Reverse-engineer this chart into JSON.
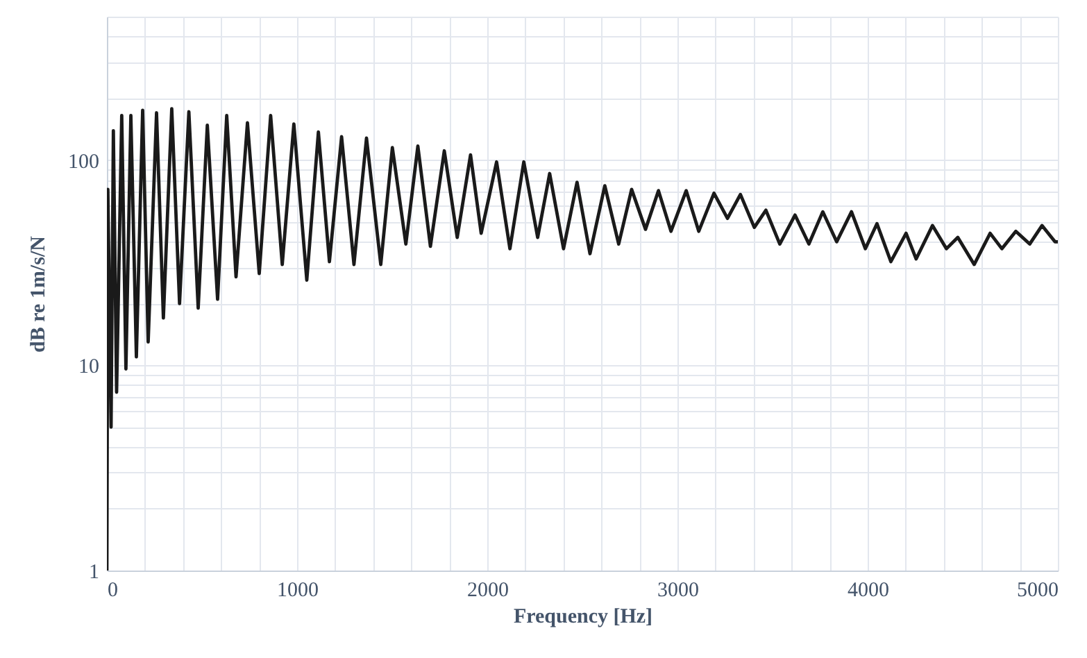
{
  "chart_data": {
    "type": "line",
    "xlabel": "Frequency [Hz]",
    "ylabel": "dB re 1m/s/N",
    "log": "y",
    "grid": true,
    "marker": "none",
    "line_style": "solid",
    "xlim": [
      0,
      5000
    ],
    "ylim": [
      1,
      500
    ],
    "xticks": [
      0,
      {
        "value": 200,
        "label": null
      },
      {
        "value": 400,
        "label": null
      },
      {
        "value": 600,
        "label": null
      },
      {
        "value": 800,
        "label": null
      },
      1000,
      {
        "value": 1200,
        "label": null
      },
      {
        "value": 1400,
        "label": null
      },
      {
        "value": 1600,
        "label": null
      },
      {
        "value": 1800,
        "label": null
      },
      2000,
      {
        "value": 2200,
        "label": null
      },
      {
        "value": 2400,
        "label": null
      },
      {
        "value": 2600,
        "label": null
      },
      {
        "value": 2800,
        "label": null
      },
      3000,
      {
        "value": 3200,
        "label": null
      },
      {
        "value": 3400,
        "label": null
      },
      {
        "value": 3600,
        "label": null
      },
      {
        "value": 3800,
        "label": null
      },
      4000,
      {
        "value": 4200,
        "label": null
      },
      {
        "value": 4400,
        "label": null
      },
      {
        "value": 4600,
        "label": null
      },
      {
        "value": 4800,
        "label": null
      },
      5000
    ],
    "yticks": [
      1,
      {
        "value": 2,
        "label": null
      },
      {
        "value": 3,
        "label": null
      },
      {
        "value": 4,
        "label": null
      },
      {
        "value": 5,
        "label": null
      },
      {
        "value": 6,
        "label": null
      },
      {
        "value": 7,
        "label": null
      },
      {
        "value": 8,
        "label": null
      },
      {
        "value": 9,
        "label": null
      },
      10,
      {
        "value": 20,
        "label": null
      },
      {
        "value": 30,
        "label": null
      },
      {
        "value": 40,
        "label": null
      },
      {
        "value": 50,
        "label": null
      },
      {
        "value": 60,
        "label": null
      },
      {
        "value": 70,
        "label": null
      },
      {
        "value": 80,
        "label": null
      },
      {
        "value": 90,
        "label": null
      },
      100,
      {
        "value": 200,
        "label": null
      },
      {
        "value": 300,
        "label": null
      },
      {
        "value": 400,
        "label": null
      },
      {
        "value": 500,
        "label": null
      }
    ],
    "x": [
      0,
      5,
      22,
      34,
      51,
      78,
      100,
      126,
      155,
      188,
      217,
      261,
      297,
      341,
      382,
      431,
      480,
      528,
      582,
      630,
      679,
      739,
      801,
      861,
      922,
      983,
      1051,
      1112,
      1170,
      1234,
      1299,
      1365,
      1440,
      1501,
      1572,
      1635,
      1701,
      1774,
      1842,
      1912,
      1968,
      2049,
      2119,
      2192,
      2265,
      2328,
      2401,
      2472,
      2540,
      2618,
      2691,
      2759,
      2832,
      2900,
      2966,
      3046,
      3112,
      3192,
      3263,
      3331,
      3404,
      3465,
      3538,
      3618,
      3691,
      3764,
      3837,
      3915,
      3988,
      4049,
      4122,
      4202,
      4255,
      4341,
      4414,
      4474,
      4560,
      4644,
      4706,
      4779,
      4852,
      4917,
      4985,
      5000
    ],
    "series": [
      {
        "color": "#1a1a1a",
        "values": [
          1,
          72,
          5,
          139,
          7.4,
          165,
          9.6,
          165,
          11,
          175,
          13,
          170,
          17,
          178,
          20,
          172,
          19,
          148,
          21,
          165,
          27,
          152,
          28,
          165,
          31,
          150,
          26,
          137,
          32,
          130,
          31,
          128,
          31,
          115,
          39,
          117,
          38,
          111,
          42,
          106,
          44,
          98,
          37,
          98,
          42,
          86,
          37,
          78,
          35,
          75,
          39,
          72,
          46,
          71,
          45,
          71,
          45,
          69,
          52,
          68,
          47,
          57,
          39,
          54,
          39,
          56,
          40,
          56,
          37,
          49,
          32,
          44,
          33,
          48,
          37,
          42,
          31,
          44,
          37,
          45,
          39,
          48,
          40,
          40
        ]
      }
    ]
  }
}
